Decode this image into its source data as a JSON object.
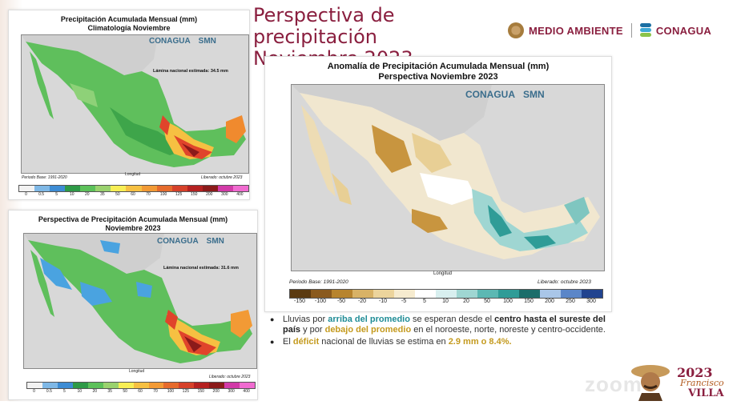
{
  "slide": {
    "title_line1": "Perspectiva de precipitación",
    "title_line2": "Noviembre 2023",
    "logo_medio": "MEDIO AMBIENTE",
    "logo_conagua": "CONAGUA"
  },
  "panel1": {
    "title_line1": "Precipitación Acumulada Mensual (mm)",
    "title_line2": "Climatología Noviembre",
    "logo_conagua": "CONAGUA",
    "logo_smn": "SMN",
    "lamina": "Lámina nacional estimada: 34.5 mm",
    "periodo": "Periodo Base: 1991-2020",
    "liberado": "Liberado: octubre 2023",
    "xlabel": "Longitud",
    "ylabel": "Latitud",
    "colorbar_labels": [
      "0",
      "0.5",
      "5",
      "10",
      "20",
      "35",
      "50",
      "60",
      "70",
      "100",
      "125",
      "150",
      "200",
      "300",
      "400"
    ]
  },
  "panel2": {
    "title_line1": "Perspectiva de Precipitación Acumulada Mensual (mm)",
    "title_line2": "Noviembre 2023",
    "logo_conagua": "CONAGUA",
    "logo_smn": "SMN",
    "lamina": "Lámina nacional estimada: 31.6 mm",
    "liberado": "Liberado: octubre 2023",
    "xlabel": "Longitud",
    "ylabel": "Latitud",
    "colorbar_labels": [
      "0",
      "0.5",
      "5",
      "10",
      "20",
      "35",
      "50",
      "60",
      "70",
      "100",
      "125",
      "150",
      "200",
      "300",
      "400"
    ]
  },
  "panel3": {
    "title_line1": "Anomalía de Precipitación Acumulada Mensual (mm)",
    "title_line2": "Perspectiva Noviembre 2023",
    "logo_conagua": "CONAGUA",
    "logo_smn": "SMN",
    "periodo": "Periodo Base: 1991-2020",
    "liberado": "Liberado: octubre 2023",
    "xlabel": "Longitud",
    "ylabel": "Latitud",
    "colorbar_labels": [
      "-150",
      "-100",
      "-50",
      "-20",
      "-10",
      "-5",
      "5",
      "10",
      "20",
      "50",
      "100",
      "150",
      "200",
      "250",
      "300"
    ]
  },
  "bullets": {
    "b1_a": "Lluvias por ",
    "b1_b": "arriba del promedio",
    "b1_c": " se esperan desde el ",
    "b1_d": "centro hasta el sureste del país",
    "b1_e": " y por ",
    "b1_f": "debajo del promedio",
    "b1_g": " en el noroeste, norte, noreste y centro-occidente.",
    "b2_a": "El ",
    "b2_b": "déficit",
    "b2_c": " nacional de lluvias se estima en ",
    "b2_d": "2.9 mm o 8.4%."
  },
  "footer": {
    "year": "2023",
    "name1": "Francisco",
    "name2": "VILLA",
    "zoom": "zoom"
  },
  "colors": {
    "title": "#8a1f3f",
    "accent_teal": "#1f8c96",
    "accent_gold": "#c49a1e"
  }
}
